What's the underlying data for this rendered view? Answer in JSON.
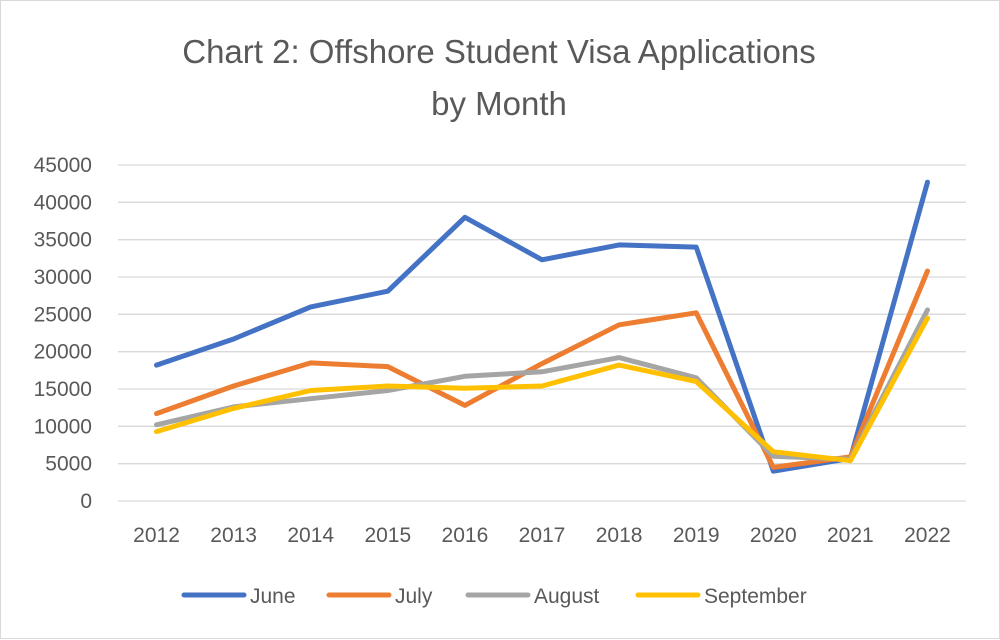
{
  "chart_data": {
    "type": "line",
    "title": "Chart 2: Offshore Student Visa Applications by Month",
    "title_lines": [
      "Chart 2: Offshore Student Visa Applications",
      "by Month"
    ],
    "xlabel": "",
    "ylabel": "",
    "categories": [
      "2012",
      "2013",
      "2014",
      "2015",
      "2016",
      "2017",
      "2018",
      "2019",
      "2020",
      "2021",
      "2022"
    ],
    "ylim": [
      0,
      45000
    ],
    "yticks": [
      0,
      5000,
      10000,
      15000,
      20000,
      25000,
      30000,
      35000,
      40000,
      45000
    ],
    "grid": true,
    "legend_position": "bottom",
    "series": [
      {
        "name": "June",
        "color": "#4472c4",
        "values": [
          18200,
          21700,
          26000,
          28100,
          38000,
          32300,
          34300,
          34000,
          4000,
          5700,
          42700
        ]
      },
      {
        "name": "July",
        "color": "#ed7d31",
        "values": [
          11700,
          15400,
          18500,
          18000,
          12800,
          18400,
          23600,
          25200,
          4500,
          5900,
          30800
        ]
      },
      {
        "name": "August",
        "color": "#a5a5a5",
        "values": [
          10200,
          12600,
          13700,
          14800,
          16700,
          17300,
          19200,
          16500,
          6000,
          5600,
          25600
        ]
      },
      {
        "name": "September",
        "color": "#ffc000",
        "values": [
          9300,
          12400,
          14800,
          15400,
          15100,
          15400,
          18200,
          16000,
          6600,
          5400,
          24500
        ]
      }
    ]
  }
}
